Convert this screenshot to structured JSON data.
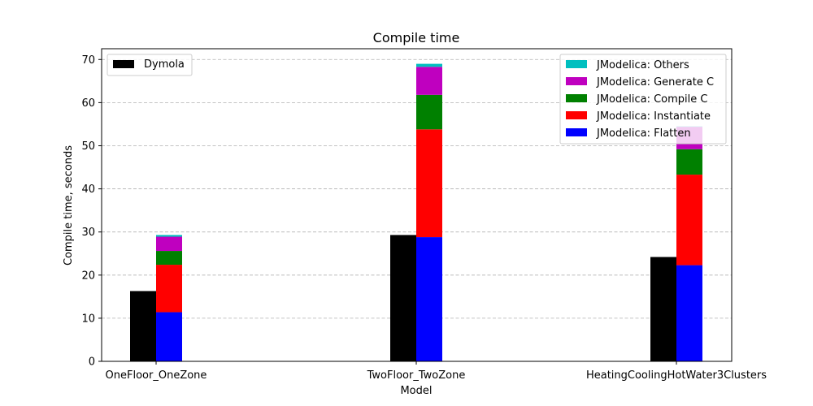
{
  "chart_data": {
    "type": "bar",
    "title": "Compile time",
    "xlabel": "Model",
    "ylabel": "Compile time, seconds",
    "ylim": [
      0,
      72.5
    ],
    "yticks": [
      0,
      10,
      20,
      30,
      40,
      50,
      60,
      70
    ],
    "grid": true,
    "categories": [
      "OneFloor_OneZone",
      "TwoFloor_TwoZone",
      "HeatingCoolingHotWater3Clusters"
    ],
    "dymola": {
      "name": "Dymola",
      "color": "#000000",
      "values": [
        16.3,
        29.3,
        24.2
      ]
    },
    "stacked_series": [
      {
        "name": "JModelica: Flatten",
        "color": "#0000ff",
        "values": [
          11.4,
          28.8,
          22.3
        ]
      },
      {
        "name": "JModelica: Instantiate",
        "color": "#ff0000",
        "values": [
          11.0,
          25.0,
          21.0
        ]
      },
      {
        "name": "JModelica: Compile C",
        "color": "#008000",
        "values": [
          3.2,
          8.0,
          5.9
        ]
      },
      {
        "name": "JModelica: Generate C",
        "color": "#bf00bf",
        "values": [
          3.3,
          6.5,
          5.2
        ]
      },
      {
        "name": "JModelica: Others",
        "color": "#00bfbf",
        "values": [
          0.4,
          0.7,
          0.1
        ]
      }
    ],
    "legend_left": {
      "placement": "upper-left",
      "items": [
        "Dymola"
      ]
    },
    "legend_right": {
      "placement": "upper-right",
      "items": [
        "JModelica: Others",
        "JModelica: Generate C",
        "JModelica: Compile C",
        "JModelica: Instantiate",
        "JModelica: Flatten"
      ]
    }
  }
}
